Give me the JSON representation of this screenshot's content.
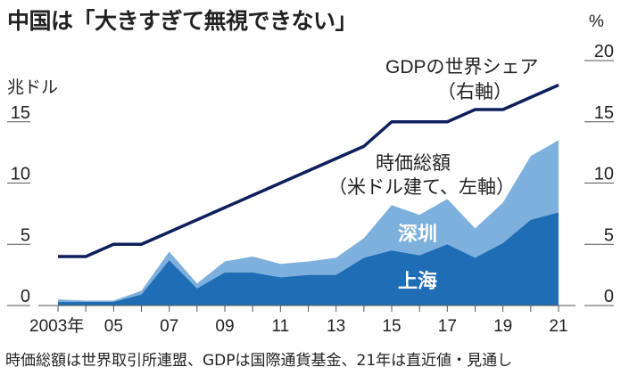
{
  "title": "中国は「大きすぎて無視できない」",
  "footnote": "時価総額は世界取引所連盟、GDPは国際通貨基金、21年は直近値・見通し",
  "chart_data": {
    "type": "area",
    "left_axis": {
      "unit": "兆ドル",
      "ticks": [
        0,
        5,
        10,
        15
      ],
      "range": [
        0,
        20
      ]
    },
    "right_axis": {
      "unit": "%",
      "ticks": [
        0,
        5,
        10,
        15,
        20
      ],
      "range": [
        0,
        20
      ]
    },
    "x": [
      2003,
      2004,
      2005,
      2006,
      2007,
      2008,
      2009,
      2010,
      2011,
      2012,
      2013,
      2014,
      2015,
      2016,
      2017,
      2018,
      2019,
      2020,
      2021
    ],
    "x_tick_labels": [
      {
        "year": 2003,
        "label": "2003年"
      },
      {
        "year": 2005,
        "label": "05"
      },
      {
        "year": 2007,
        "label": "07"
      },
      {
        "year": 2009,
        "label": "09"
      },
      {
        "year": 2011,
        "label": "11"
      },
      {
        "year": 2013,
        "label": "13"
      },
      {
        "year": 2015,
        "label": "15"
      },
      {
        "year": 2017,
        "label": "17"
      },
      {
        "year": 2019,
        "label": "19"
      },
      {
        "year": 2021,
        "label": "21"
      }
    ],
    "series": [
      {
        "name": "上海",
        "kind": "stacked-area",
        "axis": "left",
        "color": "#1f6db5",
        "values": [
          0.3,
          0.3,
          0.3,
          0.9,
          3.7,
          1.4,
          2.7,
          2.7,
          2.3,
          2.5,
          2.5,
          3.9,
          4.5,
          4.1,
          5.0,
          3.9,
          5.1,
          7.0,
          7.6
        ]
      },
      {
        "name": "深圳",
        "kind": "stacked-area",
        "axis": "left",
        "color": "#7eb0dd",
        "values": [
          0.2,
          0.1,
          0.1,
          0.3,
          0.7,
          0.4,
          0.9,
          1.3,
          1.1,
          1.1,
          1.4,
          1.6,
          3.7,
          3.3,
          3.7,
          2.4,
          3.3,
          5.2,
          5.9
        ]
      },
      {
        "name": "GDPの世界シェア",
        "kind": "line",
        "axis": "right",
        "color": "#0d1f5c",
        "values": [
          4,
          4,
          5,
          5,
          6,
          7,
          8,
          9,
          10,
          11,
          12,
          13,
          15,
          15,
          15,
          16,
          16,
          17,
          18
        ]
      }
    ],
    "annotations": {
      "gdp_label": "GDPの世界シェア",
      "gdp_sub": "（右軸）",
      "cap_label": "時価総額",
      "cap_sub": "（米ドル建て、左軸）",
      "total_label": "時価総額",
      "shenzhen": "深圳",
      "shanghai": "上海"
    },
    "grid": false,
    "legend": "none"
  }
}
